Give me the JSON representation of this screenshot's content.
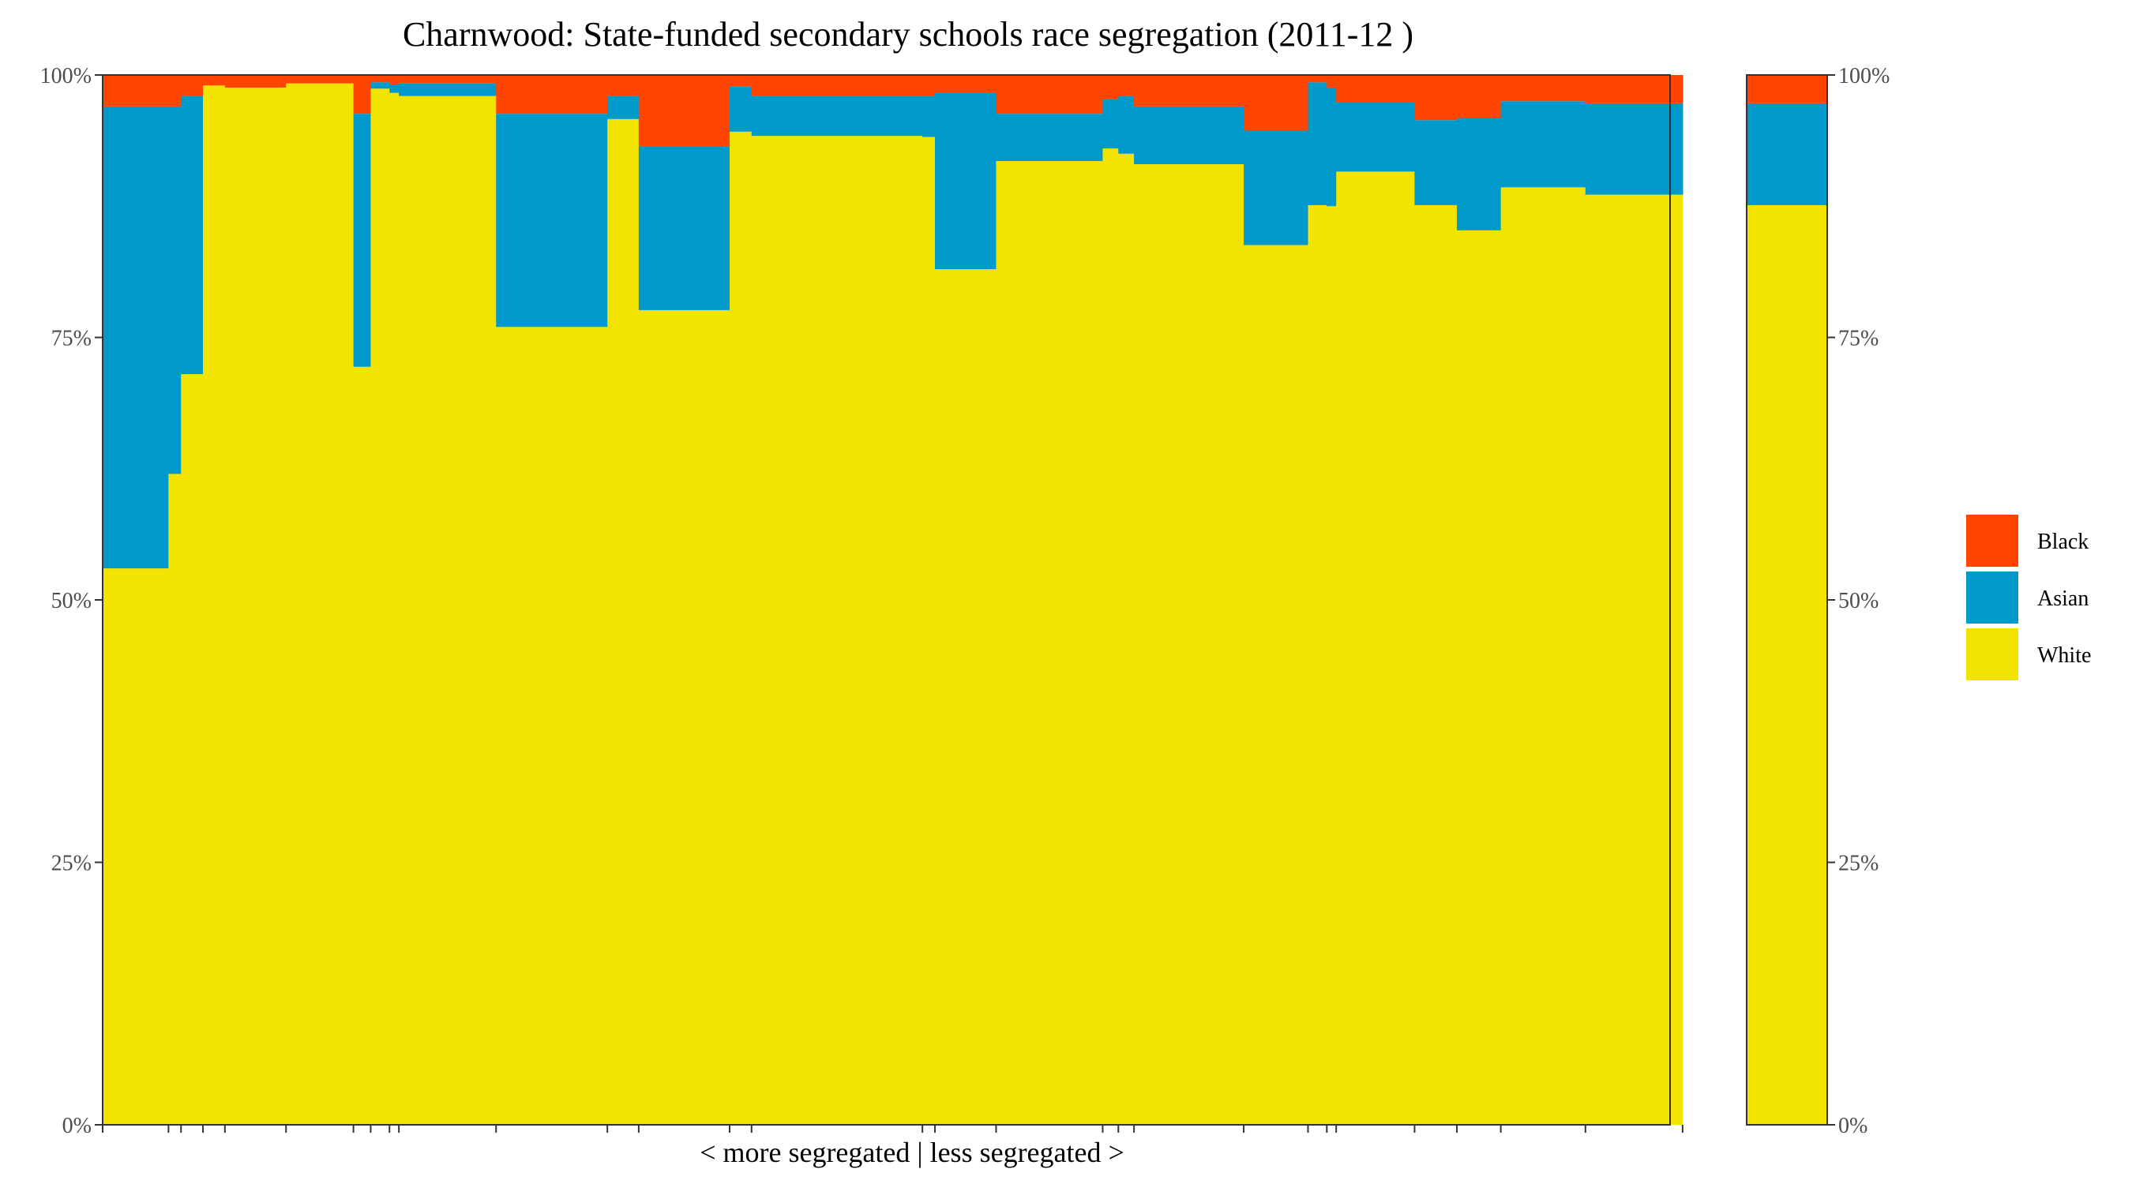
{
  "chart_data": {
    "type": "bar",
    "title": "Charnwood: State-funded secondary schools race segregation (2011-12 )",
    "xlabel": "< more segregated | less segregated >",
    "ylabel": "",
    "ylim": [
      0,
      1
    ],
    "y_ticks": [
      "0%",
      "25%",
      "50%",
      "75%",
      "100%"
    ],
    "y_tick_values": [
      0,
      0.25,
      0.5,
      0.75,
      1
    ],
    "series_order": [
      "White",
      "Asian",
      "Black"
    ],
    "colors": {
      "Black": "#ff4500",
      "Asian": "#0099cc",
      "White": "#f2e400"
    },
    "legend": {
      "position": "right",
      "entries": [
        "Black",
        "Asian",
        "White"
      ]
    },
    "schools_axis_total": 1000,
    "schools": [
      {
        "width": 42,
        "white": 0.53,
        "asian": 0.44,
        "black": 0.03
      },
      {
        "width": 8,
        "white": 0.62,
        "asian": 0.35,
        "black": 0.03
      },
      {
        "width": 14,
        "white": 0.715,
        "asian": 0.265,
        "black": 0.02
      },
      {
        "width": 14,
        "white": 0.99,
        "asian": 0.0,
        "black": 0.01
      },
      {
        "width": 39,
        "white": 0.988,
        "asian": 0.0,
        "black": 0.012
      },
      {
        "width": 43,
        "white": 0.992,
        "asian": 0.0,
        "black": 0.008
      },
      {
        "width": 11,
        "white": 0.722,
        "asian": 0.241,
        "black": 0.037
      },
      {
        "width": 12,
        "white": 0.987,
        "asian": 0.006,
        "black": 0.007
      },
      {
        "width": 6,
        "white": 0.983,
        "asian": 0.008,
        "black": 0.009
      },
      {
        "width": 62,
        "white": 0.98,
        "asian": 0.012,
        "black": 0.008
      },
      {
        "width": 71,
        "white": 0.76,
        "asian": 0.203,
        "black": 0.037
      },
      {
        "width": 20,
        "white": 0.958,
        "asian": 0.022,
        "black": 0.02
      },
      {
        "width": 58,
        "white": 0.776,
        "asian": 0.156,
        "black": 0.068
      },
      {
        "width": 14,
        "white": 0.946,
        "asian": 0.043,
        "black": 0.011
      },
      {
        "width": 109,
        "white": 0.942,
        "asian": 0.038,
        "black": 0.02
      },
      {
        "width": 8,
        "white": 0.941,
        "asian": 0.039,
        "black": 0.02
      },
      {
        "width": 39,
        "white": 0.815,
        "asian": 0.168,
        "black": 0.017
      },
      {
        "width": 68,
        "white": 0.918,
        "asian": 0.045,
        "black": 0.037
      },
      {
        "width": 10,
        "white": 0.93,
        "asian": 0.047,
        "black": 0.023
      },
      {
        "width": 10,
        "white": 0.925,
        "asian": 0.055,
        "black": 0.02
      },
      {
        "width": 70,
        "white": 0.915,
        "asian": 0.055,
        "black": 0.03
      },
      {
        "width": 41,
        "white": 0.838,
        "asian": 0.109,
        "black": 0.053
      },
      {
        "width": 12,
        "white": 0.876,
        "asian": 0.117,
        "black": 0.007
      },
      {
        "width": 6,
        "white": 0.875,
        "asian": 0.113,
        "black": 0.012
      },
      {
        "width": 50,
        "white": 0.908,
        "asian": 0.066,
        "black": 0.026
      },
      {
        "width": 27,
        "white": 0.876,
        "asian": 0.081,
        "black": 0.043
      },
      {
        "width": 28,
        "white": 0.852,
        "asian": 0.107,
        "black": 0.041
      },
      {
        "width": 54,
        "white": 0.893,
        "asian": 0.082,
        "black": 0.025
      },
      {
        "width": 62,
        "white": 0.886,
        "asian": 0.087,
        "black": 0.027
      }
    ],
    "overall": {
      "white": 0.876,
      "asian": 0.097,
      "black": 0.027
    }
  }
}
